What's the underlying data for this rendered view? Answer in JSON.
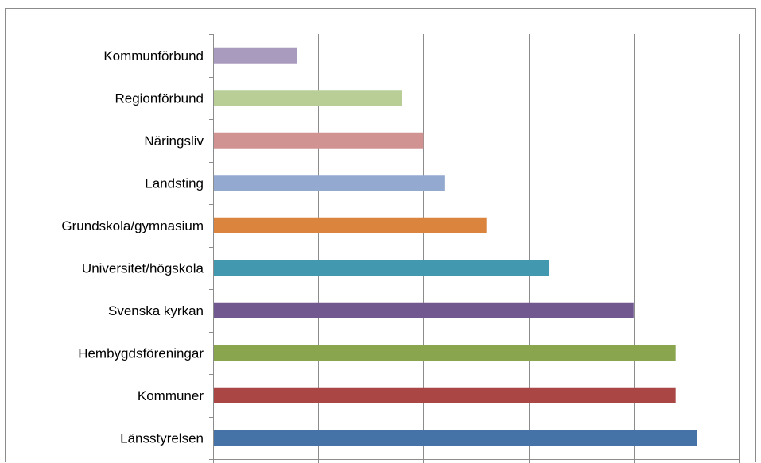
{
  "chart_data": {
    "type": "bar",
    "orientation": "horizontal",
    "categories": [
      "Länsstyrelsen",
      "Kommuner",
      "Hembygdsföreningar",
      "Svenska kyrkan",
      "Universitet/högskola",
      "Grundskola/gymnasium",
      "Landsting",
      "Näringsliv",
      "Regionförbund",
      "Kommunförbund"
    ],
    "values": [
      23,
      22,
      22,
      20,
      16,
      13,
      11,
      10,
      9,
      4
    ],
    "colors": [
      "#4572a7",
      "#aa4643",
      "#89a54e",
      "#71588f",
      "#4198af",
      "#db843d",
      "#93a9cf",
      "#d19392",
      "#b9cd96",
      "#a99bbd"
    ],
    "xlim": [
      0,
      25
    ],
    "xticks": [
      0,
      5,
      10,
      15,
      20,
      25
    ],
    "grid": "vertical",
    "title": "",
    "xlabel": "",
    "ylabel": "",
    "legend": "none"
  }
}
